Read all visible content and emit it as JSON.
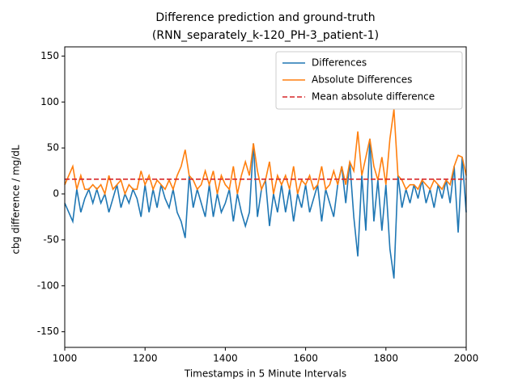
{
  "chart_data": {
    "type": "line",
    "title": "Difference prediction and ground-truth",
    "subtitle": "(RNN_separately_k-120_PH-3_patient-1)",
    "x_label": "Timestamps in 5 Minute Intervals",
    "y_label": "cbg difference / mg/dL",
    "x": [
      1000,
      1010,
      1020,
      1030,
      1040,
      1050,
      1060,
      1070,
      1080,
      1090,
      1100,
      1110,
      1120,
      1130,
      1140,
      1150,
      1160,
      1170,
      1180,
      1190,
      1200,
      1210,
      1220,
      1230,
      1240,
      1250,
      1260,
      1270,
      1280,
      1290,
      1300,
      1310,
      1320,
      1330,
      1340,
      1350,
      1360,
      1370,
      1380,
      1390,
      1400,
      1410,
      1420,
      1430,
      1440,
      1450,
      1460,
      1470,
      1480,
      1490,
      1500,
      1510,
      1520,
      1530,
      1540,
      1550,
      1560,
      1570,
      1580,
      1590,
      1600,
      1610,
      1620,
      1630,
      1640,
      1650,
      1660,
      1670,
      1680,
      1690,
      1700,
      1710,
      1720,
      1730,
      1740,
      1750,
      1760,
      1770,
      1780,
      1790,
      1800,
      1810,
      1820,
      1830,
      1840,
      1850,
      1860,
      1870,
      1880,
      1890,
      1900,
      1910,
      1920,
      1930,
      1940,
      1950,
      1960,
      1970,
      1980,
      1990,
      2000
    ],
    "series": [
      {
        "name": "Differences",
        "color": "#1f77b4",
        "values": [
          -10,
          -20,
          -30,
          5,
          -20,
          -5,
          5,
          -10,
          5,
          -10,
          0,
          -20,
          -5,
          10,
          -15,
          0,
          -10,
          5,
          -5,
          -25,
          10,
          -20,
          5,
          -15,
          10,
          -5,
          -15,
          5,
          -20,
          -30,
          -48,
          20,
          -15,
          5,
          -10,
          -25,
          10,
          -25,
          0,
          -20,
          -10,
          5,
          -30,
          0,
          -20,
          -35,
          -20,
          55,
          -25,
          5,
          15,
          -35,
          0,
          -20,
          10,
          -20,
          5,
          -30,
          0,
          -15,
          10,
          -20,
          -5,
          10,
          -30,
          5,
          -10,
          -25,
          10,
          30,
          -10,
          35,
          -25,
          -68,
          20,
          -40,
          60,
          -30,
          15,
          -40,
          10,
          -60,
          -92,
          20,
          -15,
          5,
          -10,
          10,
          -5,
          15,
          -10,
          5,
          -15,
          10,
          -5,
          15,
          -10,
          30,
          -42,
          40,
          -20
        ]
      },
      {
        "name": "Absolute Differences",
        "color": "#ff7f0e",
        "values": [
          10,
          20,
          30,
          5,
          20,
          5,
          5,
          10,
          5,
          10,
          0,
          20,
          5,
          10,
          15,
          0,
          10,
          5,
          5,
          25,
          10,
          20,
          5,
          15,
          10,
          5,
          15,
          5,
          20,
          30,
          48,
          20,
          15,
          5,
          10,
          25,
          10,
          25,
          0,
          20,
          10,
          5,
          30,
          0,
          20,
          35,
          20,
          55,
          25,
          5,
          15,
          35,
          0,
          20,
          10,
          20,
          5,
          30,
          0,
          15,
          10,
          20,
          5,
          10,
          30,
          5,
          10,
          25,
          10,
          30,
          10,
          35,
          25,
          68,
          20,
          40,
          60,
          30,
          15,
          40,
          10,
          60,
          92,
          20,
          15,
          5,
          10,
          10,
          5,
          15,
          10,
          5,
          15,
          10,
          5,
          15,
          10,
          30,
          42,
          40,
          20
        ]
      }
    ],
    "hlines": [
      {
        "name": "Mean absolute difference",
        "value": 16,
        "color": "#d62728"
      }
    ],
    "xlim": [
      1000,
      2000
    ],
    "ylim": [
      -167,
      160
    ],
    "xticks": [
      1000,
      1200,
      1400,
      1600,
      1800,
      2000
    ],
    "yticks": [
      -150,
      -100,
      -50,
      0,
      50,
      100,
      150
    ],
    "legend": "upper right"
  }
}
